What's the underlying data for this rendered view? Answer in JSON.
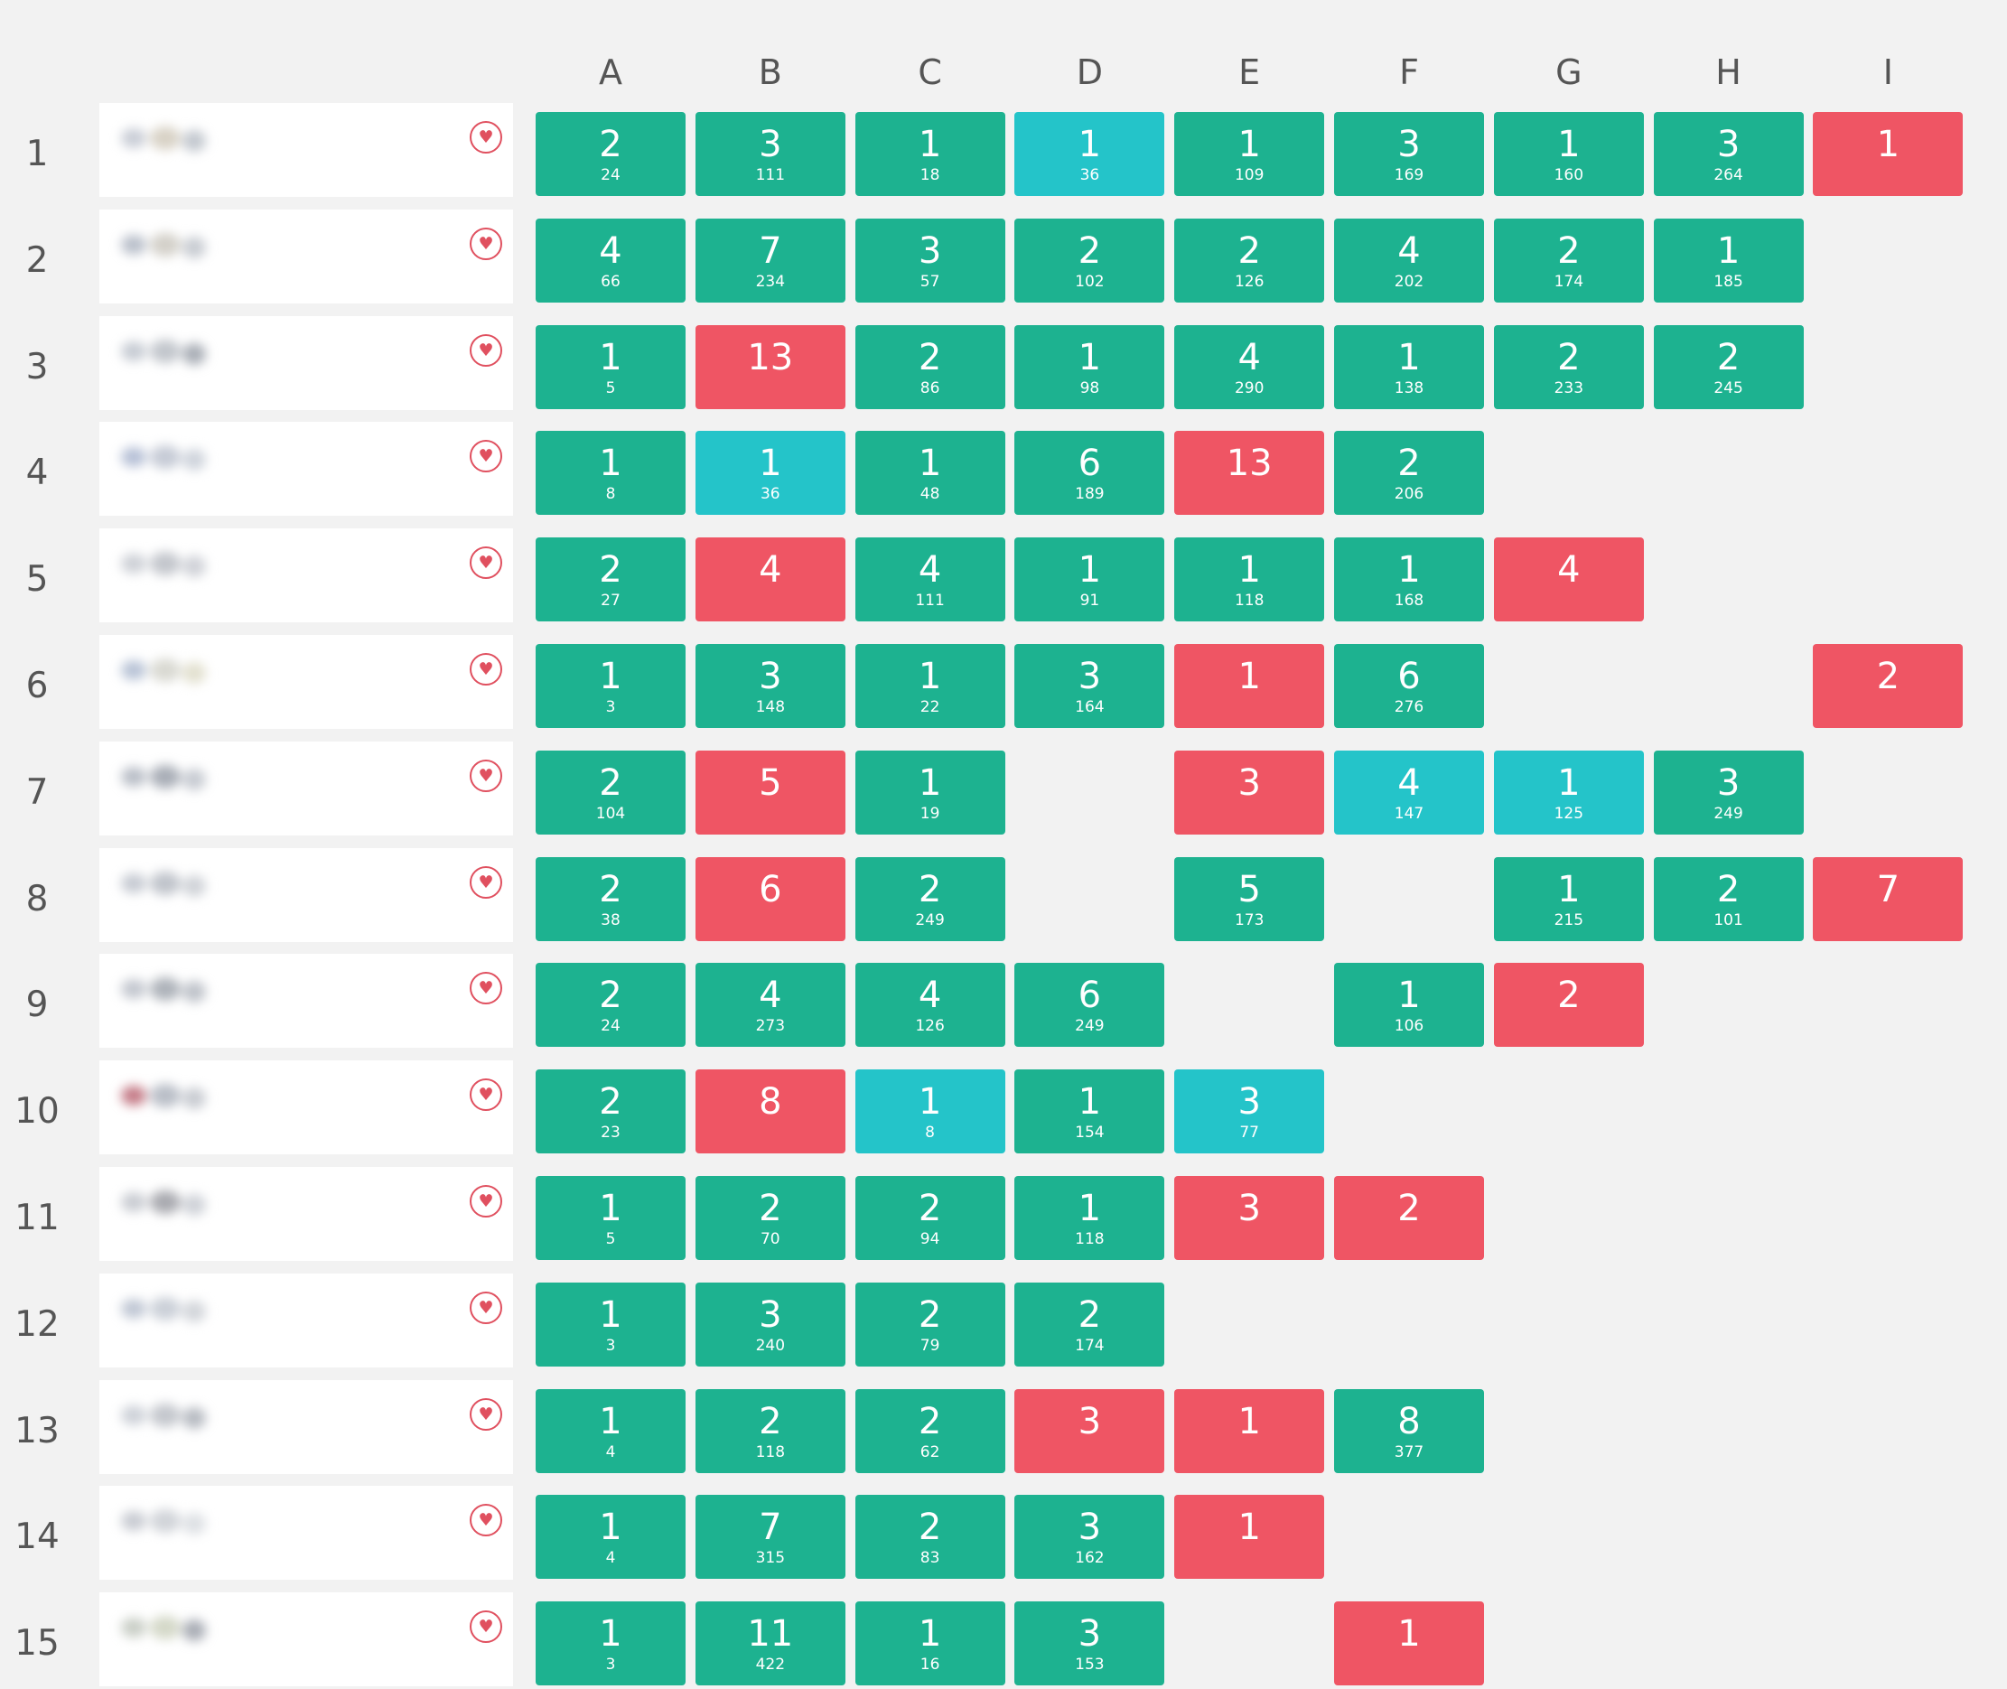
{
  "colors": {
    "background": "#f2f2f2",
    "green": "#1db290",
    "cyan": "#24c4c9",
    "red": "#ef5564",
    "heart": "#e0505f",
    "text": "#555555"
  },
  "icons": {
    "favorite": "heart-icon"
  },
  "columns": [
    "A",
    "B",
    "C",
    "D",
    "E",
    "F",
    "G",
    "H",
    "I"
  ],
  "rows": [
    {
      "rank": "1",
      "cells": [
        {
          "col": 0,
          "status": "green",
          "attempts": "2",
          "time": "24"
        },
        {
          "col": 1,
          "status": "green",
          "attempts": "3",
          "time": "111"
        },
        {
          "col": 2,
          "status": "green",
          "attempts": "1",
          "time": "18"
        },
        {
          "col": 3,
          "status": "cyan",
          "attempts": "1",
          "time": "36"
        },
        {
          "col": 4,
          "status": "green",
          "attempts": "1",
          "time": "109"
        },
        {
          "col": 5,
          "status": "green",
          "attempts": "3",
          "time": "169"
        },
        {
          "col": 6,
          "status": "green",
          "attempts": "1",
          "time": "160"
        },
        {
          "col": 7,
          "status": "green",
          "attempts": "3",
          "time": "264"
        },
        {
          "col": 8,
          "status": "red",
          "attempts": "1"
        }
      ]
    },
    {
      "rank": "2",
      "cells": [
        {
          "col": 0,
          "status": "green",
          "attempts": "4",
          "time": "66"
        },
        {
          "col": 1,
          "status": "green",
          "attempts": "7",
          "time": "234"
        },
        {
          "col": 2,
          "status": "green",
          "attempts": "3",
          "time": "57"
        },
        {
          "col": 3,
          "status": "green",
          "attempts": "2",
          "time": "102"
        },
        {
          "col": 4,
          "status": "green",
          "attempts": "2",
          "time": "126"
        },
        {
          "col": 5,
          "status": "green",
          "attempts": "4",
          "time": "202"
        },
        {
          "col": 6,
          "status": "green",
          "attempts": "2",
          "time": "174"
        },
        {
          "col": 7,
          "status": "green",
          "attempts": "1",
          "time": "185"
        }
      ]
    },
    {
      "rank": "3",
      "cells": [
        {
          "col": 0,
          "status": "green",
          "attempts": "1",
          "time": "5"
        },
        {
          "col": 1,
          "status": "red",
          "attempts": "13"
        },
        {
          "col": 2,
          "status": "green",
          "attempts": "2",
          "time": "86"
        },
        {
          "col": 3,
          "status": "green",
          "attempts": "1",
          "time": "98"
        },
        {
          "col": 4,
          "status": "green",
          "attempts": "4",
          "time": "290"
        },
        {
          "col": 5,
          "status": "green",
          "attempts": "1",
          "time": "138"
        },
        {
          "col": 6,
          "status": "green",
          "attempts": "2",
          "time": "233"
        },
        {
          "col": 7,
          "status": "green",
          "attempts": "2",
          "time": "245"
        }
      ]
    },
    {
      "rank": "4",
      "cells": [
        {
          "col": 0,
          "status": "green",
          "attempts": "1",
          "time": "8"
        },
        {
          "col": 1,
          "status": "cyan",
          "attempts": "1",
          "time": "36"
        },
        {
          "col": 2,
          "status": "green",
          "attempts": "1",
          "time": "48"
        },
        {
          "col": 3,
          "status": "green",
          "attempts": "6",
          "time": "189"
        },
        {
          "col": 4,
          "status": "red",
          "attempts": "13"
        },
        {
          "col": 5,
          "status": "green",
          "attempts": "2",
          "time": "206"
        }
      ]
    },
    {
      "rank": "5",
      "cells": [
        {
          "col": 0,
          "status": "green",
          "attempts": "2",
          "time": "27"
        },
        {
          "col": 1,
          "status": "red",
          "attempts": "4"
        },
        {
          "col": 2,
          "status": "green",
          "attempts": "4",
          "time": "111"
        },
        {
          "col": 3,
          "status": "green",
          "attempts": "1",
          "time": "91"
        },
        {
          "col": 4,
          "status": "green",
          "attempts": "1",
          "time": "118"
        },
        {
          "col": 5,
          "status": "green",
          "attempts": "1",
          "time": "168"
        },
        {
          "col": 6,
          "status": "red",
          "attempts": "4"
        }
      ]
    },
    {
      "rank": "6",
      "cells": [
        {
          "col": 0,
          "status": "green",
          "attempts": "1",
          "time": "3"
        },
        {
          "col": 1,
          "status": "green",
          "attempts": "3",
          "time": "148"
        },
        {
          "col": 2,
          "status": "green",
          "attempts": "1",
          "time": "22"
        },
        {
          "col": 3,
          "status": "green",
          "attempts": "3",
          "time": "164"
        },
        {
          "col": 4,
          "status": "red",
          "attempts": "1"
        },
        {
          "col": 5,
          "status": "green",
          "attempts": "6",
          "time": "276"
        },
        {
          "col": 8,
          "status": "red",
          "attempts": "2"
        }
      ]
    },
    {
      "rank": "7",
      "cells": [
        {
          "col": 0,
          "status": "green",
          "attempts": "2",
          "time": "104"
        },
        {
          "col": 1,
          "status": "red",
          "attempts": "5"
        },
        {
          "col": 2,
          "status": "green",
          "attempts": "1",
          "time": "19"
        },
        {
          "col": 4,
          "status": "red",
          "attempts": "3"
        },
        {
          "col": 5,
          "status": "cyan",
          "attempts": "4",
          "time": "147"
        },
        {
          "col": 6,
          "status": "cyan",
          "attempts": "1",
          "time": "125"
        },
        {
          "col": 7,
          "status": "green",
          "attempts": "3",
          "time": "249"
        }
      ]
    },
    {
      "rank": "8",
      "cells": [
        {
          "col": 0,
          "status": "green",
          "attempts": "2",
          "time": "38"
        },
        {
          "col": 1,
          "status": "red",
          "attempts": "6"
        },
        {
          "col": 2,
          "status": "green",
          "attempts": "2",
          "time": "249"
        },
        {
          "col": 4,
          "status": "green",
          "attempts": "5",
          "time": "173"
        },
        {
          "col": 6,
          "status": "green",
          "attempts": "1",
          "time": "215"
        },
        {
          "col": 7,
          "status": "green",
          "attempts": "2",
          "time": "101"
        },
        {
          "col": 8,
          "status": "red",
          "attempts": "7"
        }
      ]
    },
    {
      "rank": "9",
      "cells": [
        {
          "col": 0,
          "status": "green",
          "attempts": "2",
          "time": "24"
        },
        {
          "col": 1,
          "status": "green",
          "attempts": "4",
          "time": "273"
        },
        {
          "col": 2,
          "status": "green",
          "attempts": "4",
          "time": "126"
        },
        {
          "col": 3,
          "status": "green",
          "attempts": "6",
          "time": "249"
        },
        {
          "col": 5,
          "status": "green",
          "attempts": "1",
          "time": "106"
        },
        {
          "col": 6,
          "status": "red",
          "attempts": "2"
        }
      ]
    },
    {
      "rank": "10",
      "cells": [
        {
          "col": 0,
          "status": "green",
          "attempts": "2",
          "time": "23"
        },
        {
          "col": 1,
          "status": "red",
          "attempts": "8"
        },
        {
          "col": 2,
          "status": "cyan",
          "attempts": "1",
          "time": "8"
        },
        {
          "col": 3,
          "status": "green",
          "attempts": "1",
          "time": "154"
        },
        {
          "col": 4,
          "status": "cyan",
          "attempts": "3",
          "time": "77"
        }
      ]
    },
    {
      "rank": "11",
      "cells": [
        {
          "col": 0,
          "status": "green",
          "attempts": "1",
          "time": "5"
        },
        {
          "col": 1,
          "status": "green",
          "attempts": "2",
          "time": "70"
        },
        {
          "col": 2,
          "status": "green",
          "attempts": "2",
          "time": "94"
        },
        {
          "col": 3,
          "status": "green",
          "attempts": "1",
          "time": "118"
        },
        {
          "col": 4,
          "status": "red",
          "attempts": "3"
        },
        {
          "col": 5,
          "status": "red",
          "attempts": "2"
        }
      ]
    },
    {
      "rank": "12",
      "cells": [
        {
          "col": 0,
          "status": "green",
          "attempts": "1",
          "time": "3"
        },
        {
          "col": 1,
          "status": "green",
          "attempts": "3",
          "time": "240"
        },
        {
          "col": 2,
          "status": "green",
          "attempts": "2",
          "time": "79"
        },
        {
          "col": 3,
          "status": "green",
          "attempts": "2",
          "time": "174"
        }
      ]
    },
    {
      "rank": "13",
      "cells": [
        {
          "col": 0,
          "status": "green",
          "attempts": "1",
          "time": "4"
        },
        {
          "col": 1,
          "status": "green",
          "attempts": "2",
          "time": "118"
        },
        {
          "col": 2,
          "status": "green",
          "attempts": "2",
          "time": "62"
        },
        {
          "col": 3,
          "status": "red",
          "attempts": "3"
        },
        {
          "col": 4,
          "status": "red",
          "attempts": "1"
        },
        {
          "col": 5,
          "status": "green",
          "attempts": "8",
          "time": "377"
        }
      ]
    },
    {
      "rank": "14",
      "cells": [
        {
          "col": 0,
          "status": "green",
          "attempts": "1",
          "time": "4"
        },
        {
          "col": 1,
          "status": "green",
          "attempts": "7",
          "time": "315"
        },
        {
          "col": 2,
          "status": "green",
          "attempts": "2",
          "time": "83"
        },
        {
          "col": 3,
          "status": "green",
          "attempts": "3",
          "time": "162"
        },
        {
          "col": 4,
          "status": "red",
          "attempts": "1"
        }
      ]
    },
    {
      "rank": "15",
      "cells": [
        {
          "col": 0,
          "status": "green",
          "attempts": "1",
          "time": "3"
        },
        {
          "col": 1,
          "status": "green",
          "attempts": "11",
          "time": "422"
        },
        {
          "col": 2,
          "status": "green",
          "attempts": "1",
          "time": "16"
        },
        {
          "col": 3,
          "status": "green",
          "attempts": "3",
          "time": "153"
        },
        {
          "col": 5,
          "status": "red",
          "attempts": "1"
        }
      ]
    }
  ]
}
